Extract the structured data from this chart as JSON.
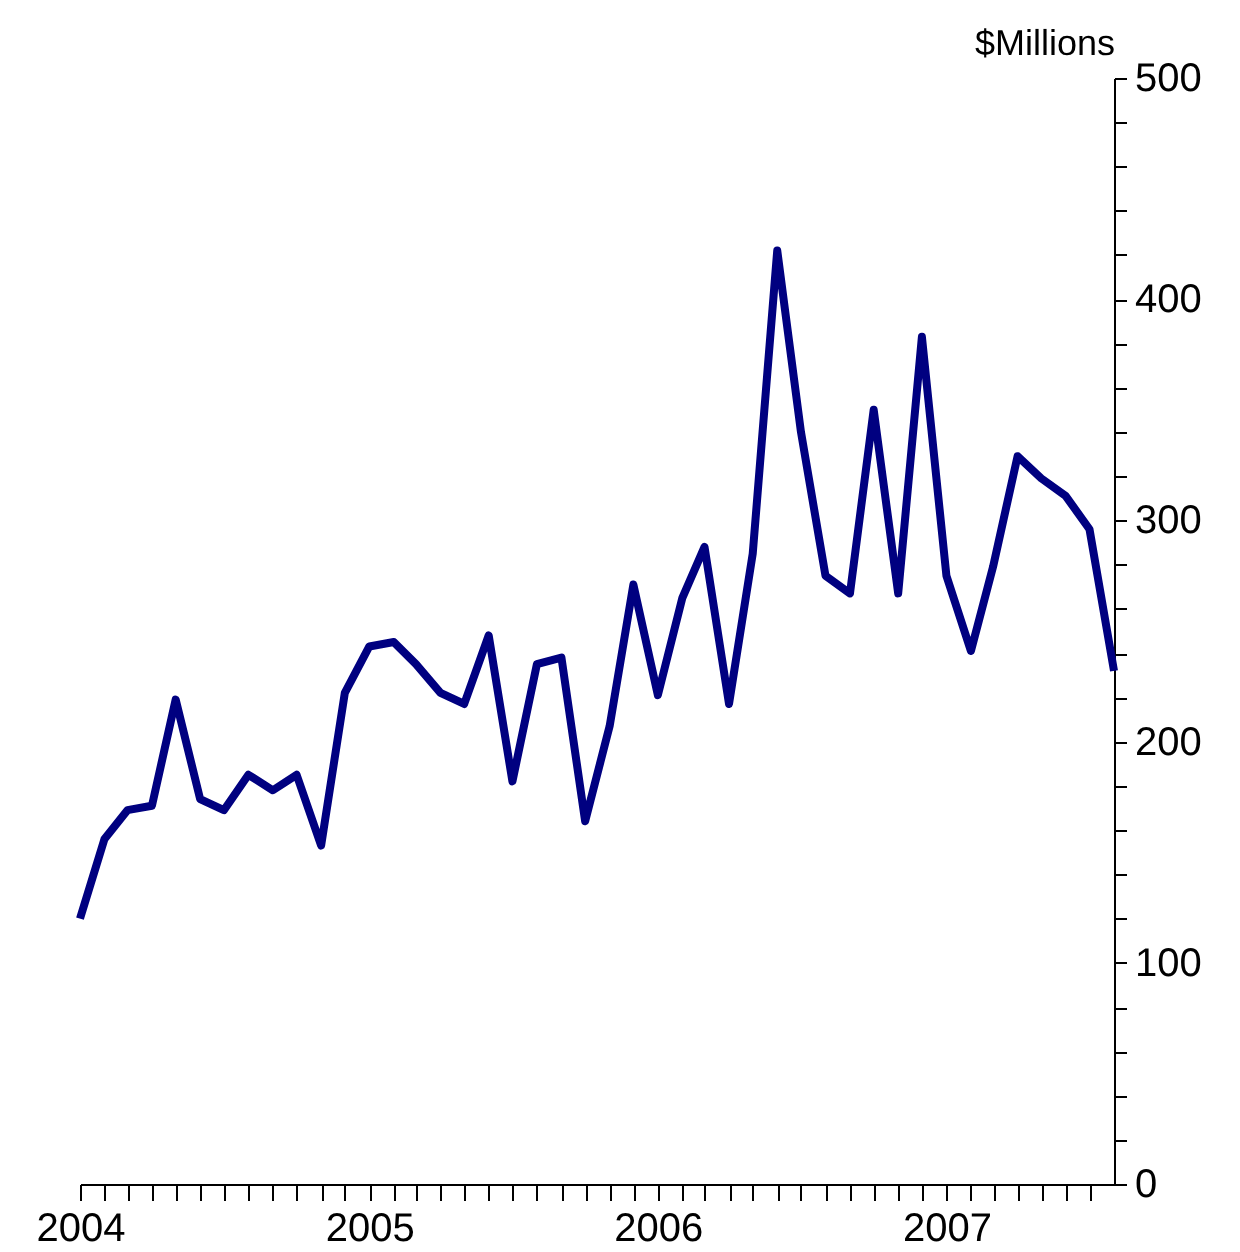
{
  "chart_data": {
    "type": "line",
    "ylabel": "$Millions",
    "x": [
      "2004-01",
      "2004-02",
      "2004-03",
      "2004-04",
      "2004-05",
      "2004-06",
      "2004-07",
      "2004-08",
      "2004-09",
      "2004-10",
      "2004-11",
      "2004-12",
      "2005-01",
      "2005-02",
      "2005-03",
      "2005-04",
      "2005-05",
      "2005-06",
      "2005-07",
      "2005-08",
      "2005-09",
      "2005-10",
      "2005-11",
      "2005-12",
      "2006-01",
      "2006-02",
      "2006-03",
      "2006-04",
      "2006-05",
      "2006-06",
      "2006-07",
      "2006-08",
      "2006-09",
      "2006-10",
      "2006-11",
      "2006-12",
      "2007-01",
      "2007-02",
      "2007-03",
      "2007-04",
      "2007-05",
      "2007-06",
      "2007-07",
      "2007-08"
    ],
    "series": [
      {
        "color": "#000080",
        "values": [
          120,
          156,
          169,
          171,
          219,
          174,
          169,
          185,
          178,
          185,
          153,
          222,
          243,
          245,
          235,
          222,
          217,
          248,
          182,
          235,
          238,
          164,
          207,
          271,
          221,
          265,
          288,
          217,
          285,
          422,
          340,
          275,
          267,
          350,
          267,
          383,
          275,
          241,
          279,
          329,
          319,
          311,
          296,
          232
        ]
      }
    ],
    "xlim": [
      "2004-01",
      "2007-08"
    ],
    "xticks": [
      {
        "value": "2004-01",
        "label": "2004"
      },
      {
        "value": "2004-02",
        "label": null
      },
      {
        "value": "2004-03",
        "label": null
      },
      {
        "value": "2004-04",
        "label": null
      },
      {
        "value": "2004-05",
        "label": null
      },
      {
        "value": "2004-06",
        "label": null
      },
      {
        "value": "2004-07",
        "label": null
      },
      {
        "value": "2004-08",
        "label": null
      },
      {
        "value": "2004-09",
        "label": null
      },
      {
        "value": "2004-10",
        "label": null
      },
      {
        "value": "2004-11",
        "label": null
      },
      {
        "value": "2004-12",
        "label": null
      },
      {
        "value": "2005-01",
        "label": "2005"
      },
      {
        "value": "2005-02",
        "label": null
      },
      {
        "value": "2005-03",
        "label": null
      },
      {
        "value": "2005-04",
        "label": null
      },
      {
        "value": "2005-05",
        "label": null
      },
      {
        "value": "2005-06",
        "label": null
      },
      {
        "value": "2005-07",
        "label": null
      },
      {
        "value": "2005-08",
        "label": null
      },
      {
        "value": "2005-09",
        "label": null
      },
      {
        "value": "2005-10",
        "label": null
      },
      {
        "value": "2005-11",
        "label": null
      },
      {
        "value": "2005-12",
        "label": null
      },
      {
        "value": "2006-01",
        "label": "2006"
      },
      {
        "value": "2006-02",
        "label": null
      },
      {
        "value": "2006-03",
        "label": null
      },
      {
        "value": "2006-04",
        "label": null
      },
      {
        "value": "2006-05",
        "label": null
      },
      {
        "value": "2006-06",
        "label": null
      },
      {
        "value": "2006-07",
        "label": null
      },
      {
        "value": "2006-08",
        "label": null
      },
      {
        "value": "2006-09",
        "label": null
      },
      {
        "value": "2006-10",
        "label": null
      },
      {
        "value": "2006-11",
        "label": null
      },
      {
        "value": "2006-12",
        "label": null
      },
      {
        "value": "2007-01",
        "label": "2007"
      },
      {
        "value": "2007-02",
        "label": null
      },
      {
        "value": "2007-03",
        "label": null
      },
      {
        "value": "2007-04",
        "label": null
      },
      {
        "value": "2007-05",
        "label": null
      },
      {
        "value": "2007-06",
        "label": null
      },
      {
        "value": "2007-07",
        "label": null
      }
    ],
    "ylim": [
      0,
      500
    ],
    "yticks": [
      0,
      {
        "value": 20,
        "label": null
      },
      {
        "value": 40,
        "label": null
      },
      {
        "value": 60,
        "label": null
      },
      {
        "value": 80,
        "label": null
      },
      100,
      {
        "value": 120,
        "label": null
      },
      {
        "value": 140,
        "label": null
      },
      {
        "value": 160,
        "label": null
      },
      {
        "value": 180,
        "label": null
      },
      200,
      {
        "value": 220,
        "label": null
      },
      {
        "value": 240,
        "label": null
      },
      {
        "value": 260,
        "label": null
      },
      {
        "value": 280,
        "label": null
      },
      300,
      {
        "value": 320,
        "label": null
      },
      {
        "value": 340,
        "label": null
      },
      {
        "value": 360,
        "label": null
      },
      {
        "value": 380,
        "label": null
      },
      400,
      {
        "value": 420,
        "label": null
      },
      {
        "value": 440,
        "label": null
      },
      {
        "value": 460,
        "label": null
      },
      {
        "value": 480,
        "label": null
      },
      500
    ],
    "grid": false,
    "marker": "none",
    "line_style": "solid"
  }
}
